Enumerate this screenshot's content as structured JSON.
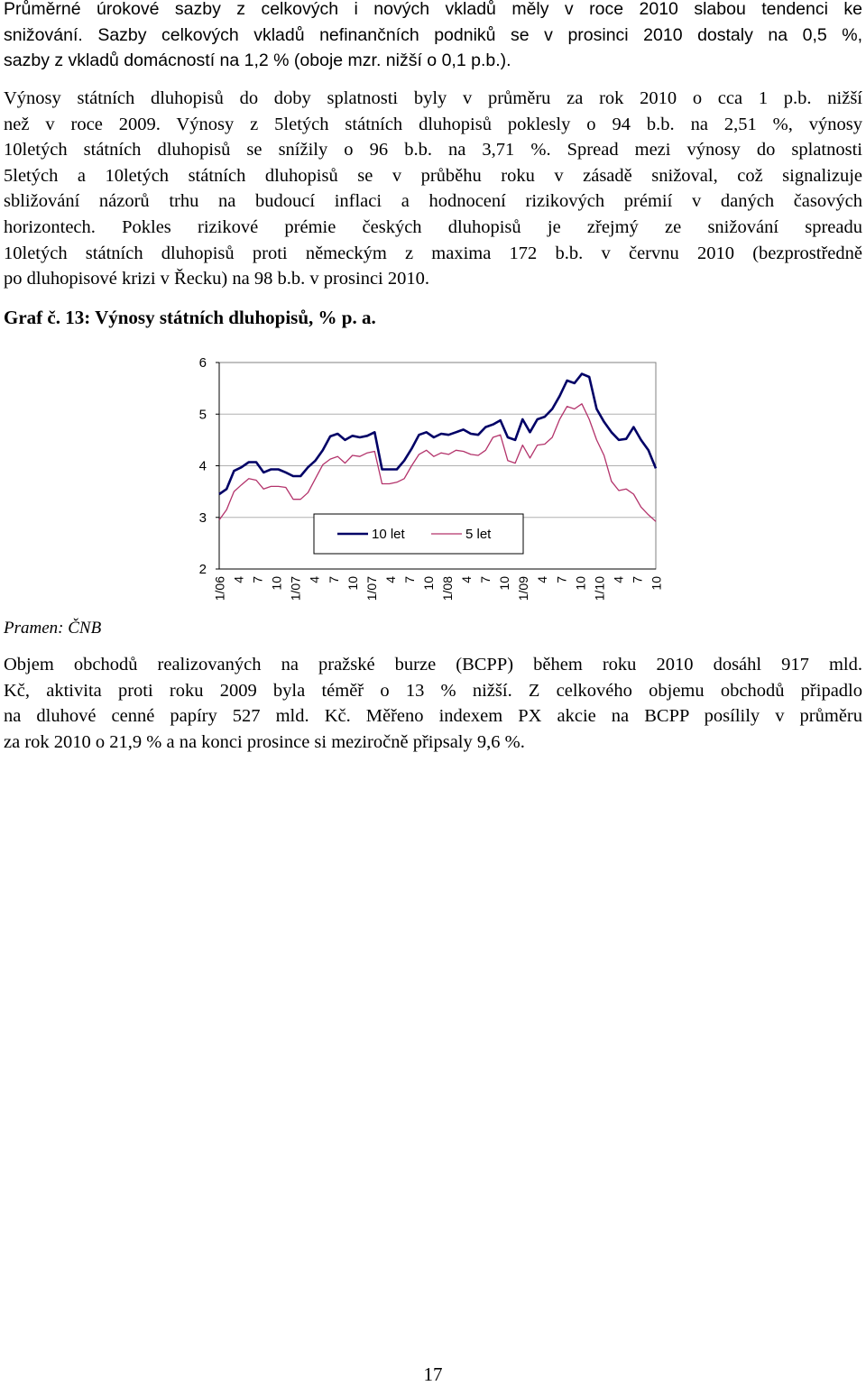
{
  "paragraphs": {
    "p1": [
      "Průměrné úrokové sazby z celkových i nových vkladů měly v roce 2010 slabou tendenci ke",
      "snižování. Sazby celkových vkladů nefinančních podniků se v prosinci 2010 dostaly na 0,5 %,",
      "sazby z vkladů domácností na 1,2 % (oboje mzr. nižší o 0,1 p.b.)."
    ],
    "p2": [
      "Výnosy státních dluhopisů do doby splatnosti byly v průměru za rok 2010 o cca 1 p.b. nižší",
      "než v roce 2009. Výnosy z 5letých státních dluhopisů poklesly o 94 b.b. na 2,51 %, výnosy",
      "10letých státních dluhopisů se snížily o 96 b.b. na 3,71 %. Spread mezi výnosy do splatnosti",
      "5letých a 10letých státních dluhopisů se v průběhu roku v zásadě snižoval, což signalizuje",
      "sbližování názorů trhu na budoucí inflaci a hodnocení rizikových prémií v daných časových",
      "horizontech. Pokles rizikové prémie českých dluhopisů je zřejmý ze snižování spreadu",
      "10letých státních dluhopisů proti německým z maxima 172 b.b. v červnu 2010 (bezprostředně",
      "po dluhopisové krizi v Řecku) na 98 b.b. v prosinci 2010."
    ],
    "p3": [
      "Objem obchodů realizovaných na pražské burze (BCPP) během roku 2010 dosáhl 917 mld.",
      "Kč, aktivita proti roku 2009 byla téměř o 13 % nižší. Z celkového objemu obchodů připadlo",
      "na dluhové cenné papíry 527 mld. Kč. Měřeno indexem PX akcie na BCPP posílily v průměru",
      "za rok 2010 o 21,9 % a na konci prosince si meziročně připsaly 9,6 %."
    ]
  },
  "caption": "Graf č. 13: Výnosy státních dluhopisů, % p. a.",
  "source": "Pramen: ČNB",
  "page_number": "17",
  "chart_data": {
    "type": "line",
    "title": "",
    "xlabel": "",
    "ylabel": "",
    "ylim": [
      2,
      6
    ],
    "yticks": [
      2,
      3,
      4,
      5,
      6
    ],
    "grid": true,
    "legend_position": "bottom-right-inside",
    "x_tick_labels": [
      "1/06",
      "4",
      "7",
      "10",
      "1/07",
      "4",
      "7",
      "10",
      "1/07",
      "4",
      "7",
      "10",
      "1/08",
      "4",
      "7",
      "10",
      "1/09",
      "4",
      "7",
      "10",
      "1/10",
      "4",
      "7",
      "10"
    ],
    "x": [
      "2006-01",
      "2006-02",
      "2006-03",
      "2006-04",
      "2006-05",
      "2006-06",
      "2006-07",
      "2006-08",
      "2006-09",
      "2006-10",
      "2006-11",
      "2006-12",
      "2007-01",
      "2007-02",
      "2007-03",
      "2007-04",
      "2007-05",
      "2007-06",
      "2007-07",
      "2007-08",
      "2007-09",
      "2007-10",
      "2007-11",
      "2007-12",
      "2008-01",
      "2008-02",
      "2008-03",
      "2008-04",
      "2008-05",
      "2008-06",
      "2008-07",
      "2008-08",
      "2008-09",
      "2008-10",
      "2008-11",
      "2008-12",
      "2009-01",
      "2009-02",
      "2009-03",
      "2009-04",
      "2009-05",
      "2009-06",
      "2009-07",
      "2009-08",
      "2009-09",
      "2009-10",
      "2009-11",
      "2009-12",
      "2010-01",
      "2010-02",
      "2010-03",
      "2010-04",
      "2010-05",
      "2010-06",
      "2010-07",
      "2010-08",
      "2010-09",
      "2010-10",
      "2010-11",
      "2010-12"
    ],
    "series": [
      {
        "name": "10 let",
        "color": "#000066",
        "values": [
          3.45,
          3.55,
          3.9,
          3.97,
          4.07,
          4.07,
          3.87,
          3.93,
          3.93,
          3.87,
          3.8,
          3.8,
          3.97,
          4.1,
          4.3,
          4.57,
          4.62,
          4.5,
          4.58,
          4.55,
          4.58,
          4.65,
          3.93,
          3.93,
          3.93,
          4.1,
          4.33,
          4.6,
          4.65,
          4.55,
          4.62,
          4.6,
          4.65,
          4.7,
          4.62,
          4.6,
          4.75,
          4.8,
          4.88,
          4.55,
          4.5,
          4.9,
          4.65,
          4.9,
          4.95,
          5.1,
          5.35,
          5.65,
          5.6,
          5.78,
          5.72,
          5.1,
          4.85,
          4.65,
          4.5,
          4.52,
          4.75,
          4.5,
          4.3,
          3.95
        ]
      },
      {
        "name": "5 let",
        "color": "#b3336b",
        "values": [
          2.95,
          3.15,
          3.5,
          3.63,
          3.75,
          3.72,
          3.55,
          3.6,
          3.6,
          3.58,
          3.35,
          3.35,
          3.48,
          3.75,
          4.02,
          4.13,
          4.18,
          4.05,
          4.2,
          4.18,
          4.25,
          4.28,
          3.65,
          3.65,
          3.68,
          3.75,
          4.0,
          4.22,
          4.3,
          4.18,
          4.25,
          4.22,
          4.3,
          4.28,
          4.22,
          4.2,
          4.3,
          4.55,
          4.6,
          4.1,
          4.05,
          4.4,
          4.15,
          4.4,
          4.42,
          4.55,
          4.9,
          5.15,
          5.1,
          5.2,
          4.9,
          4.5,
          4.2,
          3.7,
          3.52,
          3.55,
          3.45,
          3.2,
          3.05,
          2.92
        ]
      }
    ]
  }
}
